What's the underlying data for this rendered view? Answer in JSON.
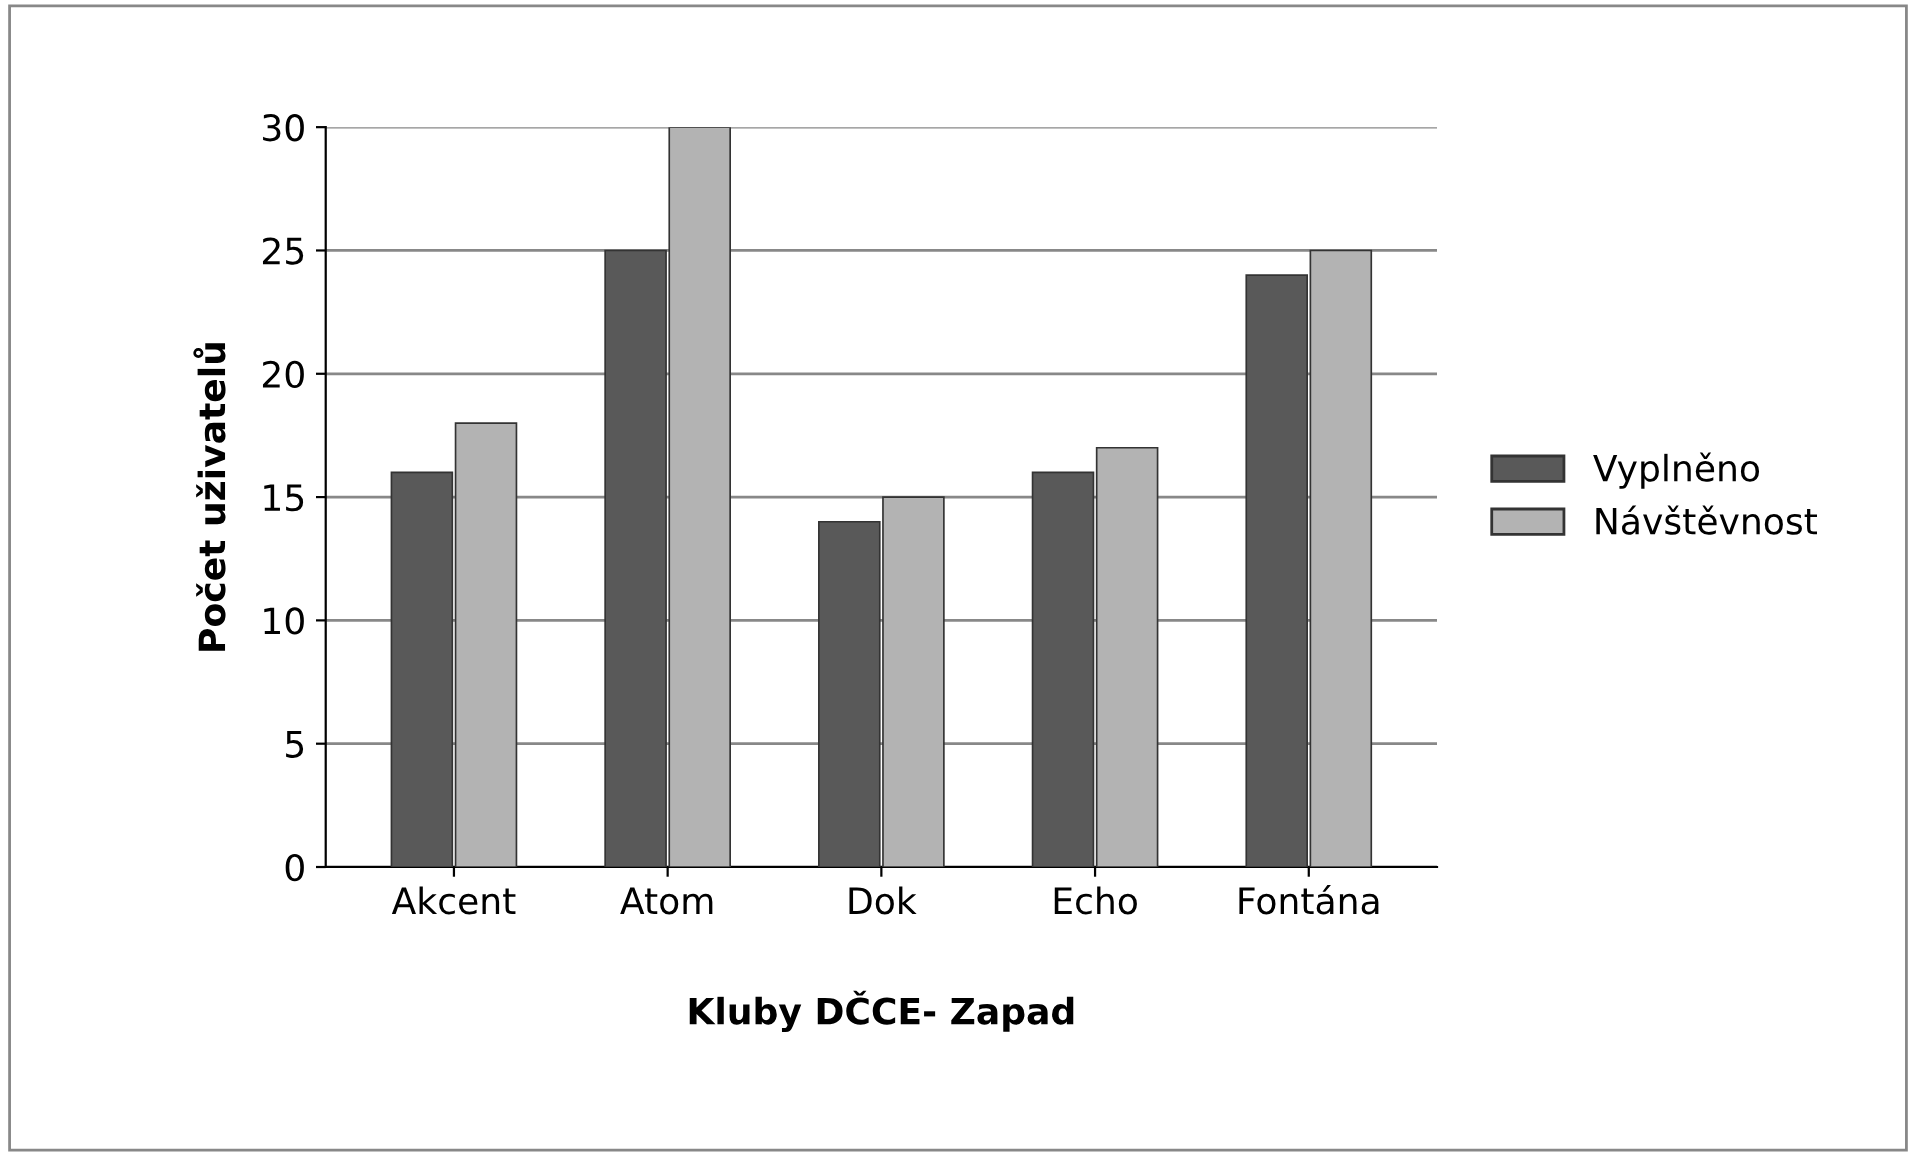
{
  "chart_data": {
    "type": "bar",
    "xlabel": "Kluby DČCE- Zapad",
    "ylabel": "Počet uživatelů",
    "categories": [
      "Akcent",
      "Atom",
      "Dok",
      "Echo",
      "Fontána"
    ],
    "series": [
      {
        "name": "Vyplněno",
        "color": "#595959",
        "values": [
          16,
          25,
          14,
          16,
          24
        ]
      },
      {
        "name": "Návštěvnost",
        "color": "#b3b3b3",
        "values": [
          18,
          30,
          15,
          17,
          25
        ]
      }
    ],
    "ylim": [
      0,
      30
    ],
    "yticks": [
      0,
      5,
      10,
      15,
      20,
      25,
      30
    ],
    "grid": "y",
    "legend": "right"
  }
}
